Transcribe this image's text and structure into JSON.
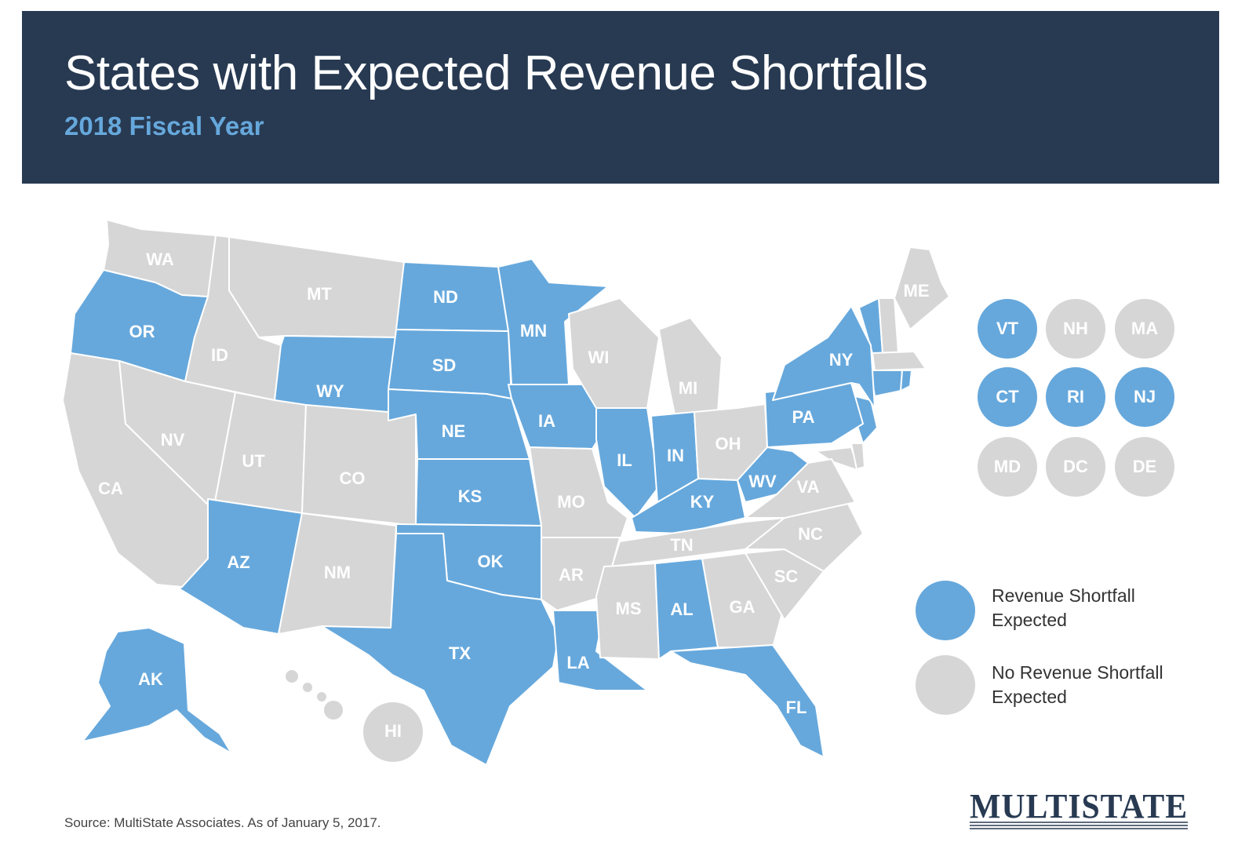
{
  "header": {
    "title": "States with Expected Revenue Shortfalls",
    "subtitle": "2018 Fiscal Year"
  },
  "colors": {
    "header_background": "#283a52",
    "subtitle": "#66a8dc",
    "shortfall": "#66a8dc",
    "no_shortfall": "#d6d6d6"
  },
  "states": [
    {
      "code": "WA",
      "shortfall": false
    },
    {
      "code": "OR",
      "shortfall": true
    },
    {
      "code": "CA",
      "shortfall": false
    },
    {
      "code": "ID",
      "shortfall": false
    },
    {
      "code": "NV",
      "shortfall": false
    },
    {
      "code": "MT",
      "shortfall": false
    },
    {
      "code": "WY",
      "shortfall": true
    },
    {
      "code": "UT",
      "shortfall": false
    },
    {
      "code": "AZ",
      "shortfall": true
    },
    {
      "code": "CO",
      "shortfall": false
    },
    {
      "code": "NM",
      "shortfall": false
    },
    {
      "code": "ND",
      "shortfall": true
    },
    {
      "code": "SD",
      "shortfall": true
    },
    {
      "code": "NE",
      "shortfall": true
    },
    {
      "code": "KS",
      "shortfall": true
    },
    {
      "code": "OK",
      "shortfall": true
    },
    {
      "code": "TX",
      "shortfall": true
    },
    {
      "code": "MN",
      "shortfall": true
    },
    {
      "code": "IA",
      "shortfall": true
    },
    {
      "code": "MO",
      "shortfall": false
    },
    {
      "code": "AR",
      "shortfall": false
    },
    {
      "code": "LA",
      "shortfall": true
    },
    {
      "code": "WI",
      "shortfall": false
    },
    {
      "code": "IL",
      "shortfall": true
    },
    {
      "code": "MI",
      "shortfall": false
    },
    {
      "code": "IN",
      "shortfall": true
    },
    {
      "code": "OH",
      "shortfall": false
    },
    {
      "code": "KY",
      "shortfall": true
    },
    {
      "code": "TN",
      "shortfall": false
    },
    {
      "code": "MS",
      "shortfall": false
    },
    {
      "code": "AL",
      "shortfall": true
    },
    {
      "code": "GA",
      "shortfall": false
    },
    {
      "code": "FL",
      "shortfall": true
    },
    {
      "code": "SC",
      "shortfall": false
    },
    {
      "code": "NC",
      "shortfall": false
    },
    {
      "code": "VA",
      "shortfall": false
    },
    {
      "code": "WV",
      "shortfall": true
    },
    {
      "code": "PA",
      "shortfall": true
    },
    {
      "code": "NY",
      "shortfall": true
    },
    {
      "code": "ME",
      "shortfall": false
    },
    {
      "code": "AK",
      "shortfall": true
    },
    {
      "code": "HI",
      "shortfall": false
    }
  ],
  "small_states": [
    {
      "code": "VT",
      "shortfall": true
    },
    {
      "code": "NH",
      "shortfall": false
    },
    {
      "code": "MA",
      "shortfall": false
    },
    {
      "code": "CT",
      "shortfall": true
    },
    {
      "code": "RI",
      "shortfall": true
    },
    {
      "code": "NJ",
      "shortfall": true
    },
    {
      "code": "MD",
      "shortfall": false
    },
    {
      "code": "DC",
      "shortfall": false
    },
    {
      "code": "DE",
      "shortfall": false
    }
  ],
  "legend": {
    "shortfall_label": "Revenue Shortfall Expected",
    "no_shortfall_label": "No Revenue Shortfall Expected"
  },
  "footer": {
    "source": "Source: MultiState Associates. As of January 5, 2017.",
    "logo_text": "MULTISTATE"
  }
}
